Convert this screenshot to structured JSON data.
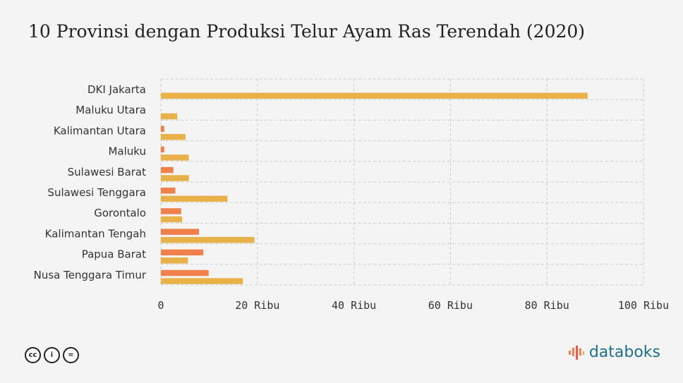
{
  "title": "10 Provinsi dengan Produksi Telur Ayam Ras Terendah (2020)",
  "brand": {
    "name": "databoks"
  },
  "license_icons": [
    "cc-icon",
    "by-icon",
    "nd-icon"
  ],
  "colors": {
    "series_a": "#f0814c",
    "series_b": "#e8b14a",
    "grid": "#cccccc",
    "brand": "#1f6f8b"
  },
  "chart_data": {
    "type": "bar",
    "orientation": "horizontal",
    "title": "10 Provinsi dengan Produksi Telur Ayam Ras Terendah (2020)",
    "categories": [
      "DKI Jakarta",
      "Maluku Utara",
      "Kalimantan Utara",
      "Maluku",
      "Sulawesi Barat",
      "Sulawesi Tenggara",
      "Gorontalo",
      "Kalimantan Tengah",
      "Papua Barat",
      "Nusa Tenggara Timur"
    ],
    "series": [
      {
        "values": [
          0,
          0,
          700,
          700,
          2600,
          3000,
          4200,
          7900,
          8800,
          9900
        ]
      },
      {
        "values": [
          88400,
          3400,
          5100,
          5800,
          5800,
          13800,
          4400,
          19400,
          5600,
          17000
        ]
      }
    ],
    "xlim": [
      0,
      100000
    ],
    "xticks": [
      0,
      20000,
      40000,
      60000,
      80000,
      100000
    ],
    "xtick_labels": [
      "0",
      "20 Ribu",
      "40 Ribu",
      "60 Ribu",
      "80 Ribu",
      "100 Ribu"
    ],
    "grid": true,
    "legend": "none"
  }
}
